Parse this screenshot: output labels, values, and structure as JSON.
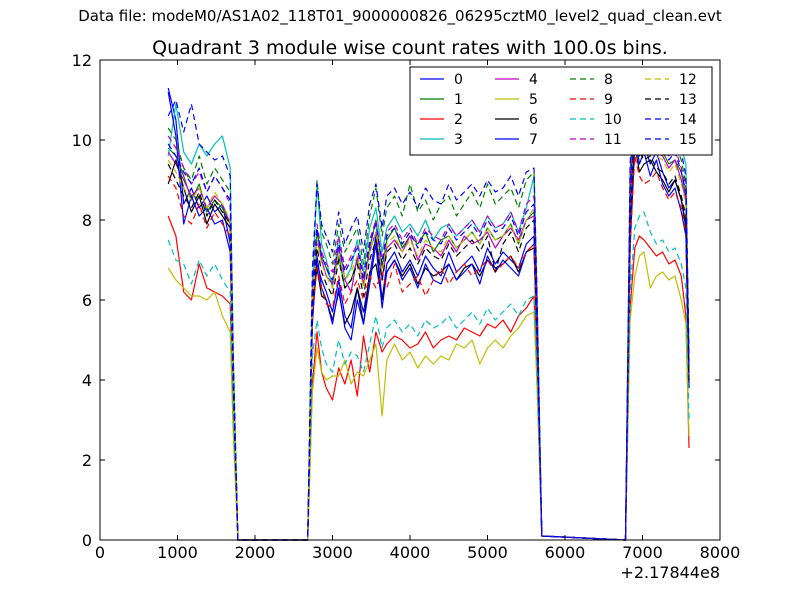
{
  "suptitle": "Data file: modeM0/AS1A02_118T01_9000000826_06295cztM0_level2_quad_clean.evt",
  "chart_data": {
    "type": "line",
    "title": "Quadrant 3 module wise count rates with 100.0s bins.",
    "xlabel": "",
    "ylabel": "",
    "x_offset_label": "+2.17844e8",
    "xlim": [
      0,
      8000
    ],
    "ylim": [
      0,
      12
    ],
    "x_ticks": [
      0,
      1000,
      2000,
      3000,
      4000,
      5000,
      6000,
      7000,
      8000
    ],
    "y_ticks": [
      0,
      2,
      4,
      6,
      8,
      10,
      12
    ],
    "grid": false,
    "legend_placement": "top-right",
    "legend_columns": 4,
    "x": [
      880,
      980,
      1080,
      1180,
      1280,
      1380,
      1480,
      1580,
      1680,
      1720,
      1780,
      2680,
      2740,
      2800,
      2860,
      2920,
      3000,
      3080,
      3160,
      3240,
      3320,
      3400,
      3480,
      3560,
      3640,
      3700,
      3800,
      3900,
      4000,
      4100,
      4200,
      4300,
      4400,
      4500,
      4600,
      4700,
      4800,
      4900,
      5000,
      5100,
      5200,
      5300,
      5400,
      5500,
      5600,
      5640,
      5700,
      6780,
      6840,
      6900,
      6960,
      7020,
      7100,
      7180,
      7260,
      7340,
      7420,
      7500,
      7560,
      7600
    ],
    "series": [
      {
        "name": "0",
        "color": "#0000ff",
        "dash": "solid",
        "values": [
          11.3,
          10.5,
          8.4,
          8.8,
          8.3,
          8.6,
          8.2,
          8.4,
          7.4,
          4.0,
          0,
          0,
          5.6,
          6.9,
          6.5,
          6.2,
          5.7,
          6.5,
          5.6,
          5.3,
          6.3,
          5.7,
          6.6,
          7.6,
          6.0,
          6.9,
          7.2,
          6.7,
          7.0,
          6.6,
          7.1,
          6.8,
          6.6,
          7.2,
          6.7,
          6.9,
          7.1,
          6.7,
          7.3,
          6.9,
          7.2,
          7.0,
          6.8,
          7.4,
          7.6,
          5.0,
          0.1,
          0,
          7.6,
          10.5,
          9.6,
          9.9,
          9.4,
          9.7,
          9.2,
          8.8,
          9.0,
          8.5,
          7.8,
          4.0
        ]
      },
      {
        "name": "1",
        "color": "#008000",
        "dash": "solid",
        "values": [
          9.8,
          9.6,
          9.1,
          8.5,
          8.9,
          8.2,
          8.5,
          8.3,
          7.9,
          4.0,
          0,
          0,
          6.0,
          7.7,
          7.1,
          6.8,
          6.4,
          7.1,
          6.3,
          6.5,
          7.0,
          6.4,
          7.3,
          8.0,
          6.8,
          7.5,
          7.8,
          7.3,
          7.6,
          7.4,
          7.7,
          7.2,
          7.5,
          7.6,
          7.3,
          7.5,
          7.7,
          7.4,
          7.8,
          7.5,
          7.6,
          7.9,
          7.4,
          8.0,
          8.2,
          5.4,
          0.1,
          0,
          8.2,
          10.8,
          10.3,
          10.0,
          10.1,
          9.9,
          9.7,
          9.4,
          9.5,
          9.2,
          8.6,
          4.3
        ]
      },
      {
        "name": "2",
        "color": "#ff0000",
        "dash": "solid",
        "values": [
          8.1,
          7.6,
          6.2,
          6.0,
          6.9,
          6.3,
          6.2,
          6.1,
          5.9,
          3.0,
          0,
          0,
          3.9,
          5.2,
          4.2,
          3.8,
          3.5,
          4.3,
          3.9,
          4.5,
          3.6,
          5.1,
          4.2,
          5.2,
          4.7,
          4.9,
          5.1,
          5.0,
          4.8,
          4.9,
          5.2,
          4.8,
          5.0,
          5.1,
          5.0,
          5.3,
          5.2,
          5.1,
          5.4,
          5.3,
          5.5,
          5.2,
          5.6,
          5.8,
          6.1,
          4.0,
          0.1,
          0,
          5.8,
          7.3,
          7.6,
          7.5,
          7.3,
          7.1,
          7.2,
          6.9,
          7.0,
          6.6,
          5.6,
          2.3
        ]
      },
      {
        "name": "3",
        "color": "#00bfbf",
        "dash": "solid",
        "values": [
          9.6,
          10.9,
          9.7,
          9.4,
          9.9,
          9.6,
          9.9,
          10.1,
          9.3,
          4.6,
          0,
          0,
          6.4,
          8.9,
          7.4,
          7.0,
          6.3,
          7.6,
          6.5,
          6.8,
          7.5,
          6.7,
          7.8,
          8.3,
          7.2,
          7.8,
          8.1,
          7.7,
          7.9,
          7.6,
          8.0,
          7.5,
          7.8,
          7.9,
          7.6,
          7.8,
          8.0,
          7.7,
          8.1,
          7.8,
          7.9,
          8.2,
          7.7,
          8.3,
          9.1,
          5.5,
          0.1,
          0,
          8.5,
          11.7,
          11.2,
          11.0,
          10.8,
          10.6,
          10.4,
          10.1,
          10.3,
          9.8,
          9.4,
          4.5
        ]
      },
      {
        "name": "4",
        "color": "#bf00bf",
        "dash": "solid",
        "values": [
          9.7,
          9.4,
          9.0,
          8.6,
          8.8,
          8.3,
          8.6,
          8.4,
          7.9,
          4.0,
          0,
          0,
          6.0,
          7.5,
          7.0,
          6.6,
          6.4,
          7.3,
          6.5,
          6.2,
          7.1,
          6.4,
          7.2,
          7.7,
          6.5,
          7.3,
          7.5,
          7.2,
          7.6,
          7.0,
          7.4,
          7.3,
          7.1,
          7.5,
          7.2,
          7.6,
          7.4,
          7.5,
          7.7,
          7.3,
          7.6,
          7.8,
          7.5,
          8.0,
          8.1,
          5.3,
          0.1,
          0,
          8.0,
          10.9,
          10.2,
          9.9,
          10.0,
          9.7,
          9.6,
          9.3,
          9.5,
          9.0,
          8.5,
          4.2
        ]
      },
      {
        "name": "5",
        "color": "#bfbf00",
        "dash": "solid",
        "values": [
          6.8,
          6.5,
          6.3,
          6.1,
          6.1,
          6.0,
          6.2,
          5.6,
          5.2,
          2.6,
          0,
          0,
          3.7,
          4.8,
          4.2,
          4.0,
          4.1,
          4.1,
          4.5,
          3.9,
          4.2,
          4.1,
          4.5,
          4.9,
          3.1,
          4.5,
          4.9,
          4.5,
          4.7,
          4.3,
          4.6,
          4.4,
          4.6,
          4.5,
          4.9,
          4.8,
          5.0,
          4.4,
          4.8,
          5.0,
          4.8,
          5.1,
          5.3,
          5.6,
          5.7,
          3.8,
          0.1,
          0,
          5.5,
          6.6,
          7.1,
          7.2,
          6.3,
          6.6,
          6.7,
          6.5,
          6.6,
          6.0,
          5.4,
          2.6
        ]
      },
      {
        "name": "6",
        "color": "#000000",
        "dash": "solid",
        "values": [
          8.9,
          9.5,
          8.8,
          8.2,
          8.6,
          7.9,
          8.4,
          8.1,
          7.8,
          3.9,
          0,
          0,
          5.8,
          6.8,
          6.1,
          6.0,
          5.5,
          6.2,
          5.4,
          5.7,
          6.3,
          5.4,
          6.7,
          6.9,
          6.0,
          6.7,
          7.0,
          6.6,
          6.9,
          6.4,
          6.8,
          6.6,
          6.7,
          6.9,
          6.5,
          6.8,
          6.9,
          6.6,
          7.0,
          6.8,
          6.9,
          7.1,
          6.7,
          7.2,
          7.3,
          4.8,
          0.1,
          0,
          7.3,
          9.9,
          9.2,
          9.4,
          9.5,
          9.2,
          9.0,
          8.7,
          9.0,
          8.5,
          7.9,
          3.8
        ]
      },
      {
        "name": "7",
        "color": "#0000ff",
        "dash": "solid",
        "values": [
          11.2,
          10.1,
          7.9,
          8.6,
          8.1,
          8.3,
          7.9,
          8.0,
          7.2,
          3.8,
          0,
          0,
          5.4,
          7.1,
          6.3,
          6.0,
          5.4,
          6.3,
          5.3,
          5.0,
          6.0,
          5.4,
          6.4,
          7.4,
          5.8,
          6.7,
          7.0,
          6.5,
          6.8,
          6.3,
          6.9,
          6.5,
          6.4,
          6.9,
          6.5,
          6.7,
          6.9,
          6.4,
          7.1,
          6.7,
          7.0,
          6.8,
          6.6,
          7.2,
          7.4,
          4.9,
          0.1,
          0,
          7.4,
          10.2,
          9.4,
          9.7,
          9.1,
          9.5,
          8.9,
          8.6,
          8.8,
          8.2,
          7.6,
          3.9
        ]
      },
      {
        "name": "8",
        "color": "#008000",
        "dash": "dashed",
        "values": [
          10.3,
          10.0,
          9.3,
          9.0,
          9.6,
          8.9,
          9.3,
          9.0,
          8.7,
          4.3,
          0,
          0,
          6.5,
          9.0,
          7.7,
          7.4,
          6.9,
          7.9,
          7.2,
          7.5,
          7.8,
          6.9,
          8.1,
          8.8,
          7.6,
          8.3,
          8.6,
          8.1,
          8.9,
          8.2,
          8.5,
          8.0,
          8.4,
          8.6,
          8.1,
          8.4,
          8.7,
          8.3,
          8.9,
          8.4,
          8.6,
          8.8,
          8.3,
          9.0,
          9.2,
          6.0,
          0.1,
          0,
          9.2,
          11.1,
          10.6,
          10.4,
          10.5,
          10.1,
          10.0,
          9.7,
          9.9,
          9.5,
          8.9,
          4.5
        ]
      },
      {
        "name": "9",
        "color": "#ff0000",
        "dash": "dashed",
        "values": [
          9.1,
          8.8,
          8.1,
          7.9,
          8.4,
          7.8,
          8.2,
          7.9,
          7.6,
          3.8,
          0,
          0,
          5.7,
          6.8,
          6.3,
          5.9,
          5.8,
          6.6,
          5.9,
          6.2,
          6.5,
          6.0,
          6.6,
          6.3,
          6.7,
          6.3,
          6.9,
          6.2,
          6.4,
          6.6,
          6.1,
          6.5,
          6.8,
          6.4,
          6.7,
          6.9,
          6.6,
          6.8,
          7.0,
          6.7,
          6.9,
          7.1,
          6.8,
          7.2,
          7.4,
          4.9,
          0.1,
          0,
          7.4,
          9.6,
          9.1,
          8.9,
          9.0,
          9.2,
          8.8,
          8.5,
          8.7,
          8.3,
          7.7,
          3.9
        ]
      },
      {
        "name": "10",
        "color": "#00bfbf",
        "dash": "dashed",
        "values": [
          7.5,
          7.0,
          6.9,
          6.4,
          7.0,
          6.6,
          6.9,
          6.5,
          6.2,
          3.1,
          0,
          0,
          4.6,
          5.5,
          4.8,
          4.4,
          4.2,
          5.0,
          4.4,
          4.7,
          4.6,
          4.2,
          4.9,
          5.6,
          4.8,
          5.3,
          5.5,
          5.2,
          5.4,
          5.1,
          5.5,
          5.3,
          5.4,
          5.6,
          5.3,
          5.5,
          5.7,
          5.4,
          5.8,
          5.5,
          5.7,
          5.9,
          5.6,
          6.0,
          6.1,
          4.1,
          0.1,
          0,
          6.2,
          7.8,
          8.1,
          8.2,
          7.7,
          7.4,
          7.5,
          7.2,
          7.3,
          6.9,
          6.3,
          3.0
        ]
      },
      {
        "name": "11",
        "color": "#bf00bf",
        "dash": "dashed",
        "values": [
          10.1,
          9.8,
          9.3,
          8.9,
          9.2,
          8.7,
          9.1,
          8.8,
          8.4,
          4.2,
          0,
          0,
          6.3,
          7.9,
          7.2,
          6.9,
          6.7,
          7.6,
          6.8,
          7.1,
          7.4,
          6.6,
          7.5,
          8.0,
          7.0,
          7.7,
          7.9,
          7.5,
          7.8,
          7.4,
          7.8,
          7.6,
          7.5,
          7.9,
          7.6,
          7.8,
          8.0,
          7.7,
          8.1,
          7.8,
          7.9,
          8.2,
          7.7,
          8.4,
          8.6,
          5.6,
          0.1,
          0,
          8.6,
          11.0,
          10.4,
          10.2,
          10.3,
          10.0,
          9.9,
          9.6,
          9.8,
          9.3,
          8.8,
          4.4
        ]
      },
      {
        "name": "12",
        "color": "#bfbf00",
        "dash": "dashed",
        "values": [
          9.5,
          9.2,
          8.8,
          8.5,
          8.8,
          8.3,
          8.7,
          8.4,
          8.0,
          4.0,
          0,
          0,
          6.0,
          7.5,
          6.9,
          6.6,
          6.3,
          7.2,
          6.5,
          6.7,
          7.1,
          6.3,
          7.2,
          7.7,
          6.7,
          7.4,
          7.6,
          7.2,
          7.5,
          7.1,
          7.5,
          7.3,
          7.2,
          7.6,
          7.3,
          7.5,
          7.7,
          7.4,
          7.8,
          7.5,
          7.6,
          7.9,
          7.4,
          8.0,
          8.3,
          5.4,
          0.1,
          0,
          8.3,
          10.6,
          10.0,
          9.8,
          9.9,
          9.6,
          9.5,
          9.2,
          9.4,
          8.9,
          8.4,
          4.2
        ]
      },
      {
        "name": "13",
        "color": "#000000",
        "dash": "dashed",
        "values": [
          9.4,
          9.0,
          8.6,
          8.3,
          8.7,
          8.1,
          8.5,
          8.2,
          7.9,
          3.9,
          0,
          0,
          5.9,
          7.3,
          6.7,
          6.4,
          6.1,
          7.0,
          6.3,
          6.5,
          6.9,
          6.1,
          7.0,
          7.5,
          6.5,
          7.2,
          7.4,
          7.0,
          7.3,
          6.9,
          7.3,
          7.1,
          7.0,
          7.4,
          7.1,
          7.3,
          7.5,
          7.2,
          7.6,
          6.7,
          7.4,
          7.7,
          7.2,
          7.8,
          8.0,
          5.2,
          0.1,
          0,
          8.0,
          10.3,
          9.7,
          9.5,
          9.6,
          9.3,
          9.2,
          8.9,
          9.1,
          8.6,
          8.1,
          4.0
        ]
      },
      {
        "name": "14",
        "color": "#0000ff",
        "dash": "dashed",
        "values": [
          10.6,
          11.0,
          10.2,
          10.9,
          9.9,
          9.7,
          9.5,
          9.6,
          9.1,
          4.5,
          0,
          0,
          6.8,
          8.9,
          7.9,
          7.6,
          7.2,
          8.2,
          7.4,
          7.8,
          8.1,
          7.2,
          8.4,
          8.9,
          7.8,
          8.6,
          8.8,
          8.4,
          8.7,
          8.3,
          8.8,
          8.5,
          8.4,
          8.9,
          8.5,
          8.7,
          8.9,
          8.6,
          9.0,
          8.7,
          8.8,
          9.1,
          8.6,
          9.2,
          9.3,
          6.1,
          0.1,
          0,
          9.4,
          11.5,
          10.9,
          10.7,
          10.8,
          10.4,
          10.3,
          10.0,
          10.2,
          9.7,
          9.1,
          4.6
        ]
      },
      {
        "name": "15",
        "color": "#0000ff",
        "dash": "dashed",
        "values": [
          9.9,
          9.6,
          9.2,
          8.9,
          9.3,
          8.7,
          9.1,
          8.8,
          8.5,
          4.2,
          0,
          0,
          6.2,
          7.8,
          7.1,
          6.8,
          6.5,
          7.4,
          6.7,
          7.0,
          7.3,
          6.5,
          7.4,
          7.9,
          6.9,
          7.6,
          7.8,
          7.4,
          7.7,
          7.3,
          7.7,
          7.5,
          7.4,
          7.8,
          7.5,
          7.7,
          7.9,
          7.6,
          8.0,
          7.7,
          7.8,
          8.1,
          7.6,
          8.2,
          8.4,
          5.5,
          0.1,
          0,
          8.5,
          10.9,
          10.3,
          10.1,
          10.2,
          9.9,
          9.8,
          9.5,
          9.7,
          9.2,
          8.7,
          4.3
        ]
      }
    ]
  }
}
